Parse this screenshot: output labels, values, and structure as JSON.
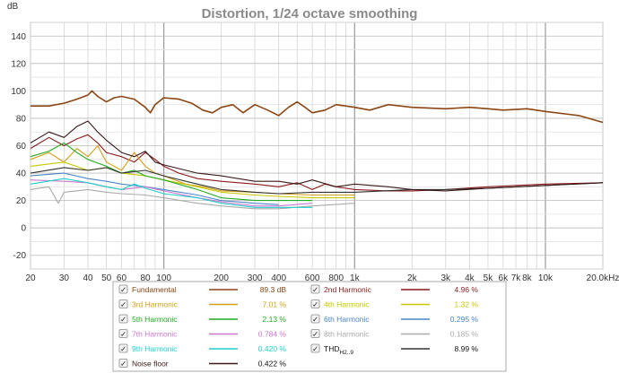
{
  "chart_data": {
    "type": "line",
    "title": "Distortion, 1/24 octave smoothing",
    "ylabel": "dB",
    "x_unit": "Hz",
    "xscale": "log",
    "xlim": [
      20,
      20000
    ],
    "ylim": [
      -30,
      150
    ],
    "grid": true,
    "y_ticks": [
      -20,
      0,
      20,
      40,
      60,
      80,
      100,
      120,
      140
    ],
    "x_ticks": [
      {
        "v": 20,
        "label": "20"
      },
      {
        "v": 30,
        "label": "30"
      },
      {
        "v": 40,
        "label": "40"
      },
      {
        "v": 50,
        "label": "50"
      },
      {
        "v": 60,
        "label": "60"
      },
      {
        "v": 80,
        "label": "80"
      },
      {
        "v": 100,
        "label": "100"
      },
      {
        "v": 200,
        "label": "200"
      },
      {
        "v": 300,
        "label": "300"
      },
      {
        "v": 400,
        "label": "400"
      },
      {
        "v": 600,
        "label": "600"
      },
      {
        "v": 800,
        "label": "800"
      },
      {
        "v": 1000,
        "label": "1k"
      },
      {
        "v": 2000,
        "label": "2k"
      },
      {
        "v": 3000,
        "label": "3k"
      },
      {
        "v": 4000,
        "label": "4k"
      },
      {
        "v": 5000,
        "label": "5k"
      },
      {
        "v": 6000,
        "label": "6k"
      },
      {
        "v": 7000,
        "label": "7k"
      },
      {
        "v": 8000,
        "label": "8k"
      },
      {
        "v": 10000,
        "label": "10k"
      },
      {
        "v": 20000,
        "label": "20.0kHz"
      }
    ],
    "series": [
      {
        "name": "Fundamental",
        "value": "89.3 dB",
        "color": "#8b4513",
        "points": [
          [
            20,
            89
          ],
          [
            25,
            89
          ],
          [
            30,
            91
          ],
          [
            35,
            94
          ],
          [
            40,
            97
          ],
          [
            42,
            100
          ],
          [
            45,
            96
          ],
          [
            50,
            92
          ],
          [
            55,
            95
          ],
          [
            60,
            96
          ],
          [
            70,
            94
          ],
          [
            80,
            88
          ],
          [
            85,
            84
          ],
          [
            90,
            90
          ],
          [
            100,
            95
          ],
          [
            120,
            94
          ],
          [
            140,
            91
          ],
          [
            160,
            86
          ],
          [
            180,
            84
          ],
          [
            200,
            88
          ],
          [
            230,
            90
          ],
          [
            260,
            84
          ],
          [
            300,
            90
          ],
          [
            350,
            86
          ],
          [
            400,
            82
          ],
          [
            450,
            88
          ],
          [
            500,
            92
          ],
          [
            550,
            88
          ],
          [
            600,
            84
          ],
          [
            700,
            86
          ],
          [
            800,
            90
          ],
          [
            1000,
            88
          ],
          [
            1200,
            86
          ],
          [
            1500,
            90
          ],
          [
            2000,
            88
          ],
          [
            3000,
            87
          ],
          [
            4000,
            88
          ],
          [
            5000,
            87
          ],
          [
            6000,
            86
          ],
          [
            8000,
            87
          ],
          [
            10000,
            85
          ],
          [
            15000,
            82
          ],
          [
            20000,
            77
          ]
        ]
      },
      {
        "name": "2nd Harmonic",
        "value": "4.96 %",
        "color": "#8b1a1a",
        "points": [
          [
            20,
            58
          ],
          [
            25,
            66
          ],
          [
            30,
            60
          ],
          [
            35,
            65
          ],
          [
            40,
            68
          ],
          [
            45,
            62
          ],
          [
            50,
            55
          ],
          [
            60,
            52
          ],
          [
            70,
            48
          ],
          [
            80,
            55
          ],
          [
            90,
            50
          ],
          [
            100,
            45
          ],
          [
            120,
            40
          ],
          [
            150,
            36
          ],
          [
            200,
            34
          ],
          [
            300,
            32
          ],
          [
            400,
            30
          ],
          [
            500,
            33
          ],
          [
            600,
            28
          ],
          [
            700,
            32
          ],
          [
            800,
            30
          ],
          [
            1000,
            28
          ],
          [
            1500,
            27
          ],
          [
            2000,
            27
          ],
          [
            3000,
            28
          ],
          [
            5000,
            30
          ],
          [
            10000,
            32
          ],
          [
            20000,
            33
          ]
        ]
      },
      {
        "name": "3rd Harmonic",
        "value": "7.01 %",
        "color": "#d4a017",
        "points": [
          [
            20,
            50
          ],
          [
            25,
            55
          ],
          [
            30,
            48
          ],
          [
            35,
            58
          ],
          [
            40,
            52
          ],
          [
            45,
            60
          ],
          [
            50,
            48
          ],
          [
            60,
            42
          ],
          [
            70,
            55
          ],
          [
            80,
            45
          ],
          [
            90,
            40
          ],
          [
            100,
            38
          ],
          [
            130,
            32
          ],
          [
            160,
            30
          ],
          [
            200,
            27
          ],
          [
            300,
            26
          ],
          [
            400,
            25
          ],
          [
            600,
            24
          ],
          [
            1000,
            24
          ]
        ]
      },
      {
        "name": "4th Harmonic",
        "value": "1.32 %",
        "color": "#c8c800",
        "points": [
          [
            20,
            45
          ],
          [
            30,
            48
          ],
          [
            40,
            42
          ],
          [
            50,
            44
          ],
          [
            60,
            40
          ],
          [
            80,
            38
          ],
          [
            100,
            35
          ],
          [
            150,
            30
          ],
          [
            200,
            26
          ],
          [
            300,
            24
          ],
          [
            400,
            23
          ],
          [
            600,
            22
          ],
          [
            1000,
            22
          ]
        ]
      },
      {
        "name": "5th Harmonic",
        "value": "2.13 %",
        "color": "#22aa22",
        "points": [
          [
            20,
            52
          ],
          [
            25,
            56
          ],
          [
            30,
            62
          ],
          [
            35,
            55
          ],
          [
            40,
            50
          ],
          [
            50,
            45
          ],
          [
            60,
            40
          ],
          [
            70,
            42
          ],
          [
            80,
            38
          ],
          [
            100,
            35
          ],
          [
            150,
            28
          ],
          [
            200,
            22
          ],
          [
            300,
            20
          ],
          [
            400,
            20
          ],
          [
            600,
            20
          ]
        ]
      },
      {
        "name": "6th Harmonic",
        "value": "0.295 %",
        "color": "#4a86c8",
        "points": [
          [
            20,
            38
          ],
          [
            30,
            40
          ],
          [
            40,
            36
          ],
          [
            50,
            34
          ],
          [
            60,
            32
          ],
          [
            80,
            30
          ],
          [
            100,
            28
          ],
          [
            150,
            24
          ],
          [
            200,
            20
          ],
          [
            300,
            18
          ],
          [
            400,
            17
          ]
        ]
      },
      {
        "name": "7th Harmonic",
        "value": "0.784 %",
        "color": "#cc77cc",
        "points": [
          [
            20,
            35
          ],
          [
            30,
            34
          ],
          [
            40,
            33
          ],
          [
            50,
            30
          ],
          [
            60,
            28
          ],
          [
            80,
            30
          ],
          [
            100,
            27
          ],
          [
            150,
            22
          ],
          [
            200,
            19
          ],
          [
            300,
            16
          ],
          [
            400,
            16
          ],
          [
            600,
            18
          ]
        ]
      },
      {
        "name": "8th Harmonic",
        "value": "0.185 %",
        "color": "#aaaaaa",
        "points": [
          [
            20,
            28
          ],
          [
            25,
            30
          ],
          [
            28,
            18
          ],
          [
            30,
            26
          ],
          [
            40,
            28
          ],
          [
            50,
            26
          ],
          [
            60,
            25
          ],
          [
            80,
            24
          ],
          [
            100,
            22
          ],
          [
            150,
            18
          ],
          [
            200,
            16
          ],
          [
            300,
            14
          ],
          [
            400,
            14
          ],
          [
            600,
            16
          ],
          [
            1000,
            18
          ]
        ]
      },
      {
        "name": "9th Harmonic",
        "value": "0.420 %",
        "color": "#22cccc",
        "points": [
          [
            20,
            32
          ],
          [
            30,
            36
          ],
          [
            40,
            33
          ],
          [
            50,
            30
          ],
          [
            60,
            28
          ],
          [
            70,
            32
          ],
          [
            80,
            29
          ],
          [
            100,
            25
          ],
          [
            150,
            22
          ],
          [
            200,
            18
          ],
          [
            300,
            15
          ],
          [
            400,
            15
          ],
          [
            600,
            15
          ]
        ]
      },
      {
        "name": "THD",
        "name_sub": "H2..9",
        "value": "8.99 %",
        "color": "#333333",
        "points": [
          [
            20,
            40
          ],
          [
            30,
            44
          ],
          [
            40,
            42
          ],
          [
            50,
            44
          ],
          [
            60,
            40
          ],
          [
            80,
            42
          ],
          [
            100,
            38
          ],
          [
            150,
            32
          ],
          [
            200,
            28
          ],
          [
            300,
            26
          ],
          [
            400,
            25
          ],
          [
            600,
            26
          ],
          [
            1000,
            26
          ],
          [
            2000,
            28
          ],
          [
            3000,
            28
          ],
          [
            5000,
            29
          ],
          [
            10000,
            31
          ],
          [
            20000,
            33
          ]
        ]
      },
      {
        "name": "Noise floor",
        "value": "0.422 %",
        "color": "#3a1a1a",
        "points": [
          [
            20,
            62
          ],
          [
            25,
            70
          ],
          [
            30,
            66
          ],
          [
            35,
            74
          ],
          [
            40,
            78
          ],
          [
            45,
            70
          ],
          [
            50,
            64
          ],
          [
            60,
            55
          ],
          [
            70,
            52
          ],
          [
            80,
            56
          ],
          [
            90,
            48
          ],
          [
            100,
            46
          ],
          [
            150,
            40
          ],
          [
            200,
            38
          ],
          [
            300,
            34
          ],
          [
            400,
            34
          ],
          [
            500,
            32
          ],
          [
            600,
            35
          ],
          [
            800,
            30
          ],
          [
            1000,
            32
          ],
          [
            1500,
            30
          ],
          [
            2000,
            28
          ],
          [
            3000,
            27
          ],
          [
            5000,
            29
          ],
          [
            10000,
            31
          ],
          [
            20000,
            33
          ]
        ]
      }
    ]
  }
}
